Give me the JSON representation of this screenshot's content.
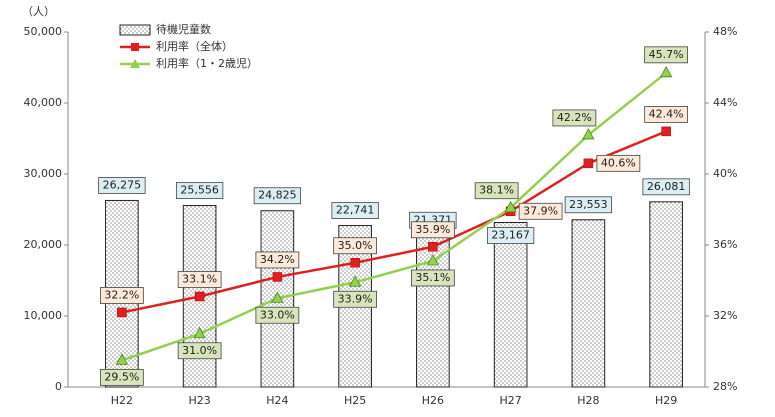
{
  "chart_data": {
    "type": "bar_line",
    "ylabel": "（人）",
    "categories": [
      "H22",
      "H23",
      "H24",
      "H25",
      "H26",
      "H27",
      "H28",
      "H29"
    ],
    "ylim": [
      0,
      50000
    ],
    "yticks": [
      0,
      {
        "value": 10000,
        "label": "10,000"
      },
      {
        "value": 20000,
        "label": "20,000"
      },
      {
        "value": 30000,
        "label": "30,000"
      },
      {
        "value": 40000,
        "label": "40,000"
      },
      {
        "value": 50000,
        "label": "50,000"
      }
    ],
    "y2lim": [
      28,
      48
    ],
    "y2ticks": [
      {
        "value": 28,
        "label": "28%"
      },
      {
        "value": 32,
        "label": "32%"
      },
      {
        "value": 36,
        "label": "36%"
      },
      {
        "value": 40,
        "label": "40%"
      },
      {
        "value": 44,
        "label": "44%"
      },
      {
        "value": 48,
        "label": "48%"
      }
    ],
    "series": [
      {
        "name": "待機児童数",
        "type": "bar",
        "color": "#ffffff",
        "label_color": "#dbeef4",
        "values": [
          26275,
          25556,
          24825,
          22741,
          21371,
          23167,
          23553,
          26081
        ],
        "value_labels": [
          "26,275",
          "25,556",
          "24,825",
          "22,741",
          "21,371",
          "23,167",
          "23,553",
          "26,081"
        ]
      },
      {
        "name": "利用率（全体）",
        "type": "line",
        "axis": "y2",
        "color": "#e02020",
        "marker": "square",
        "label_color": "#fde9d9",
        "values": [
          32.2,
          33.1,
          34.2,
          35.0,
          35.9,
          37.9,
          40.6,
          42.4
        ],
        "value_labels": [
          "32.2%",
          "33.1%",
          "34.2%",
          "35.0%",
          "35.9%",
          "37.9%",
          "40.6%",
          "42.4%"
        ]
      },
      {
        "name": "利用率（1・2歳児）",
        "type": "line",
        "axis": "y2",
        "color": "#92d050",
        "marker": "triangle",
        "label_color": "#d8e4bc",
        "values": [
          29.5,
          31.0,
          33.0,
          33.9,
          35.1,
          38.1,
          42.2,
          45.7
        ],
        "value_labels": [
          "29.5%",
          "31.0%",
          "33.0%",
          "33.9%",
          "35.1%",
          "38.1%",
          "42.2%",
          "45.7%"
        ]
      }
    ]
  }
}
